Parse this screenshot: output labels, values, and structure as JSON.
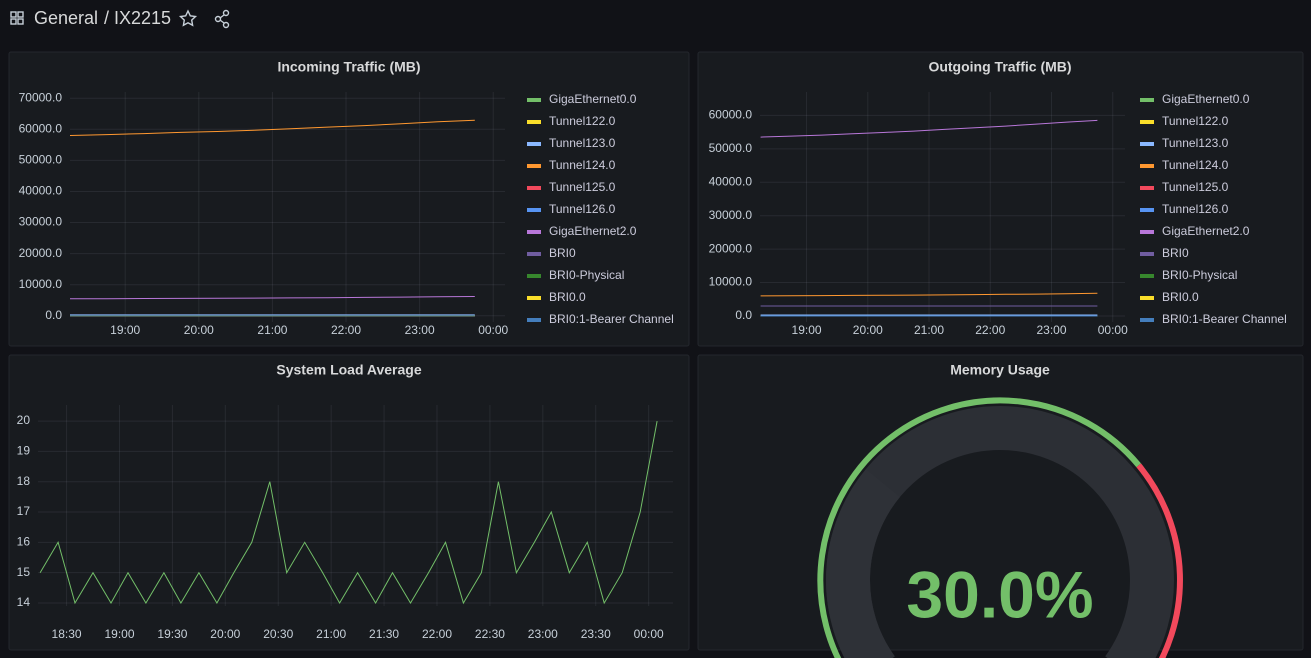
{
  "header": {
    "folder": "General",
    "dashboard": "/ IX2215"
  },
  "chart_data": [
    {
      "type": "line",
      "title": "Incoming Traffic (MB)",
      "legend": "right",
      "grid": true,
      "x": [
        18.25,
        18.75,
        19.25,
        19.75,
        20.25,
        20.75,
        21.25,
        21.75,
        22.25,
        22.75,
        23.25,
        23.75
      ],
      "xlim": [
        18.25,
        24.16
      ],
      "xticks": [
        {
          "value": 19,
          "label": "19:00"
        },
        {
          "value": 20,
          "label": "20:00"
        },
        {
          "value": 21,
          "label": "21:00"
        },
        {
          "value": 22,
          "label": "22:00"
        },
        {
          "value": 23,
          "label": "23:00"
        },
        {
          "value": 24,
          "label": "00:00"
        }
      ],
      "ylim": [
        -2000,
        72000
      ],
      "yticks": [
        {
          "value": 0,
          "label": "0.0"
        },
        {
          "value": 10000,
          "label": "10000.0"
        },
        {
          "value": 20000,
          "label": "20000.0"
        },
        {
          "value": 30000,
          "label": "30000.0"
        },
        {
          "value": 40000,
          "label": "40000.0"
        },
        {
          "value": 50000,
          "label": "50000.0"
        },
        {
          "value": 60000,
          "label": "60000.0"
        },
        {
          "value": 70000,
          "label": "70000.0"
        }
      ],
      "series": [
        {
          "name": "GigaEthernet0.0",
          "color": "#73bf69",
          "values": [
            0,
            0,
            0,
            0,
            0,
            0,
            0,
            0,
            0,
            0,
            0,
            0
          ]
        },
        {
          "name": "Tunnel122.0",
          "color": "#fade2a",
          "values": [
            0,
            0,
            0,
            0,
            0,
            0,
            0,
            0,
            0,
            0,
            0,
            0
          ]
        },
        {
          "name": "Tunnel123.0",
          "color": "#8ab8ff",
          "values": [
            300,
            300,
            300,
            300,
            300,
            300,
            300,
            300,
            300,
            300,
            300,
            300
          ]
        },
        {
          "name": "Tunnel124.0",
          "color": "#ff9830",
          "values": [
            58000,
            58300,
            58600,
            59000,
            59300,
            59700,
            60200,
            60700,
            61200,
            61800,
            62400,
            62900
          ]
        },
        {
          "name": "Tunnel125.0",
          "color": "#f2495c",
          "values": [
            0,
            0,
            0,
            0,
            0,
            0,
            0,
            0,
            0,
            0,
            0,
            0
          ]
        },
        {
          "name": "Tunnel126.0",
          "color": "#5794f2",
          "values": [
            0,
            0,
            0,
            0,
            0,
            0,
            0,
            0,
            0,
            0,
            0,
            0
          ]
        },
        {
          "name": "GigaEthernet2.0",
          "color": "#b877d9",
          "values": [
            5500,
            5500,
            5550,
            5600,
            5650,
            5700,
            5750,
            5800,
            5900,
            6000,
            6100,
            6200
          ]
        },
        {
          "name": "BRI0",
          "color": "#705da0",
          "values": [
            0,
            0,
            0,
            0,
            0,
            0,
            0,
            0,
            0,
            0,
            0,
            0
          ]
        },
        {
          "name": "BRI0-Physical",
          "color": "#37872d",
          "values": [
            0,
            0,
            0,
            0,
            0,
            0,
            0,
            0,
            0,
            0,
            0,
            0
          ]
        },
        {
          "name": "BRI0.0",
          "color": "#fade2a",
          "values": [
            0,
            0,
            0,
            0,
            0,
            0,
            0,
            0,
            0,
            0,
            0,
            0
          ]
        },
        {
          "name": "BRI0:1-Bearer Channel",
          "color": "#447ebc",
          "values": [
            0,
            0,
            0,
            0,
            0,
            0,
            0,
            0,
            0,
            0,
            0,
            0
          ]
        }
      ]
    },
    {
      "type": "line",
      "title": "Outgoing Traffic (MB)",
      "legend": "right",
      "grid": true,
      "x": [
        18.25,
        18.75,
        19.25,
        19.75,
        20.25,
        20.75,
        21.25,
        21.75,
        22.25,
        22.75,
        23.25,
        23.75
      ],
      "xlim": [
        18.24,
        24.2
      ],
      "xticks": [
        {
          "value": 19,
          "label": "19:00"
        },
        {
          "value": 20,
          "label": "20:00"
        },
        {
          "value": 21,
          "label": "21:00"
        },
        {
          "value": 22,
          "label": "22:00"
        },
        {
          "value": 23,
          "label": "23:00"
        },
        {
          "value": 24,
          "label": "00:00"
        }
      ],
      "ylim": [
        -1800,
        67000
      ],
      "yticks": [
        {
          "value": 0,
          "label": "0.0"
        },
        {
          "value": 10000,
          "label": "10000.0"
        },
        {
          "value": 20000,
          "label": "20000.0"
        },
        {
          "value": 30000,
          "label": "30000.0"
        },
        {
          "value": 40000,
          "label": "40000.0"
        },
        {
          "value": 50000,
          "label": "50000.0"
        },
        {
          "value": 60000,
          "label": "60000.0"
        }
      ],
      "series": [
        {
          "name": "GigaEthernet0.0",
          "color": "#73bf69",
          "values": [
            0,
            0,
            0,
            0,
            0,
            0,
            0,
            0,
            0,
            0,
            0,
            0
          ]
        },
        {
          "name": "Tunnel122.0",
          "color": "#fade2a",
          "values": [
            0,
            0,
            0,
            0,
            0,
            0,
            0,
            0,
            0,
            0,
            0,
            0
          ]
        },
        {
          "name": "Tunnel123.0",
          "color": "#8ab8ff",
          "values": [
            300,
            300,
            300,
            300,
            300,
            300,
            300,
            300,
            300,
            300,
            300,
            300
          ]
        },
        {
          "name": "Tunnel124.0",
          "color": "#ff9830",
          "values": [
            6000,
            6050,
            6100,
            6150,
            6200,
            6250,
            6300,
            6400,
            6500,
            6550,
            6650,
            6800
          ]
        },
        {
          "name": "Tunnel125.0",
          "color": "#f2495c",
          "values": [
            0,
            0,
            0,
            0,
            0,
            0,
            0,
            0,
            0,
            0,
            0,
            0
          ]
        },
        {
          "name": "Tunnel126.0",
          "color": "#5794f2",
          "values": [
            0,
            0,
            0,
            0,
            0,
            0,
            0,
            0,
            0,
            0,
            0,
            0
          ]
        },
        {
          "name": "GigaEthernet2.0",
          "color": "#b877d9",
          "values": [
            53500,
            53800,
            54100,
            54500,
            54900,
            55300,
            55800,
            56300,
            56800,
            57400,
            58000,
            58500
          ]
        },
        {
          "name": "BRI0",
          "color": "#705da0",
          "values": [
            3000,
            3000,
            3000,
            3000,
            3000,
            3000,
            3000,
            3000,
            3000,
            3000,
            3000,
            3000
          ]
        },
        {
          "name": "BRI0-Physical",
          "color": "#37872d",
          "values": [
            0,
            0,
            0,
            0,
            0,
            0,
            0,
            0,
            0,
            0,
            0,
            0
          ]
        },
        {
          "name": "BRI0.0",
          "color": "#fade2a",
          "values": [
            0,
            0,
            0,
            0,
            0,
            0,
            0,
            0,
            0,
            0,
            0,
            0
          ]
        },
        {
          "name": "BRI0:1-Bearer Channel",
          "color": "#447ebc",
          "values": [
            0,
            0,
            0,
            0,
            0,
            0,
            0,
            0,
            0,
            0,
            0,
            0
          ]
        }
      ]
    },
    {
      "type": "line",
      "title": "System Load Average",
      "grid": true,
      "x": [
        18.25,
        18.42,
        18.58,
        18.75,
        18.92,
        19.08,
        19.25,
        19.42,
        19.58,
        19.75,
        19.92,
        20.08,
        20.25,
        20.42,
        20.58,
        20.75,
        20.92,
        21.08,
        21.25,
        21.42,
        21.58,
        21.75,
        21.92,
        22.08,
        22.25,
        22.42,
        22.58,
        22.75,
        22.92,
        23.08,
        23.25,
        23.42,
        23.58,
        23.75,
        23.92,
        24.08
      ],
      "xlim": [
        18.23,
        24.23
      ],
      "xticks": [
        {
          "value": 18.5,
          "label": "18:30"
        },
        {
          "value": 19,
          "label": "19:00"
        },
        {
          "value": 19.5,
          "label": "19:30"
        },
        {
          "value": 20,
          "label": "20:00"
        },
        {
          "value": 20.5,
          "label": "20:30"
        },
        {
          "value": 21,
          "label": "21:00"
        },
        {
          "value": 21.5,
          "label": "21:30"
        },
        {
          "value": 22,
          "label": "22:00"
        },
        {
          "value": 22.5,
          "label": "22:30"
        },
        {
          "value": 23,
          "label": "23:00"
        },
        {
          "value": 23.5,
          "label": "23:30"
        },
        {
          "value": 24,
          "label": "00:00"
        }
      ],
      "ylim": [
        13.9,
        20.53
      ],
      "yticks": [
        14,
        15,
        16,
        17,
        18,
        19,
        20
      ],
      "series": [
        {
          "color": "#73bf69",
          "values": [
            15,
            16,
            14,
            15,
            14,
            15,
            14,
            15,
            14,
            15,
            14,
            15,
            16,
            18,
            15,
            16,
            15,
            14,
            15,
            14,
            15,
            14,
            15,
            16,
            14,
            15,
            18,
            15,
            16,
            17,
            15,
            16,
            14,
            15,
            17,
            20
          ]
        }
      ]
    },
    {
      "type": "gauge",
      "title": "Memory Usage",
      "values": [
        30
      ],
      "value_labels": [
        "30.0%"
      ],
      "ylim": [
        0,
        100
      ],
      "color": "#73bf69",
      "thresholds": [
        {
          "value": 70,
          "color": "#f2495c"
        }
      ]
    }
  ]
}
